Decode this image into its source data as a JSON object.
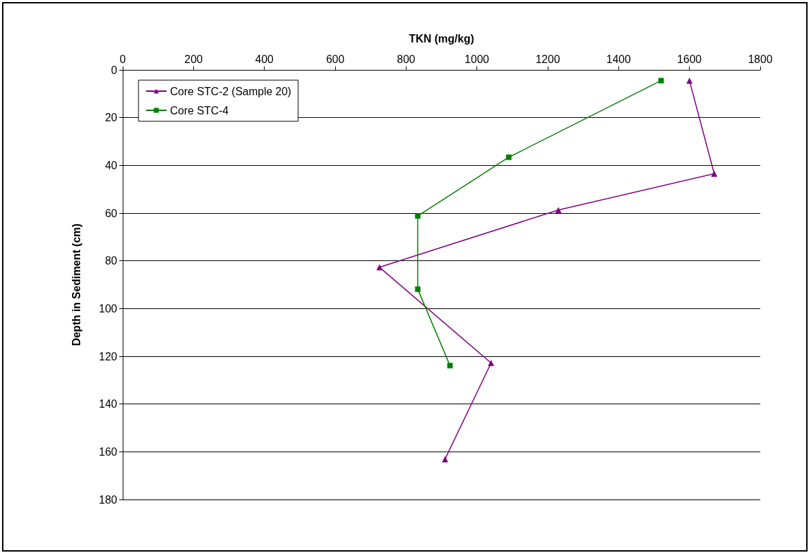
{
  "chart_data": {
    "type": "line",
    "xlabel": "TKN (mg/kg)",
    "ylabel": "Depth in Sediment (cm)",
    "xlim": [
      0,
      1800
    ],
    "xticks": [
      0,
      200,
      400,
      600,
      800,
      1000,
      1200,
      1400,
      1600,
      1800
    ],
    "ylim": [
      180,
      0
    ],
    "yticks": [
      0,
      20,
      40,
      60,
      80,
      100,
      120,
      140,
      160,
      180
    ],
    "grid": "y",
    "legend": "top left",
    "series": [
      {
        "name": "Core STC-2 (Sample 20)",
        "color": "#800080",
        "marker": "triangle",
        "x": [
          1600,
          1670,
          1230,
          725,
          1040,
          910
        ],
        "values": [
          4.5,
          43.5,
          58.7,
          82.7,
          122.8,
          163.1
        ]
      },
      {
        "name": "Core STC-4",
        "color": "#008000",
        "marker": "square",
        "x": [
          1520,
          1090,
          833,
          833,
          924
        ],
        "values": [
          4.5,
          36.6,
          61.2,
          91.9,
          123.9
        ]
      }
    ]
  }
}
